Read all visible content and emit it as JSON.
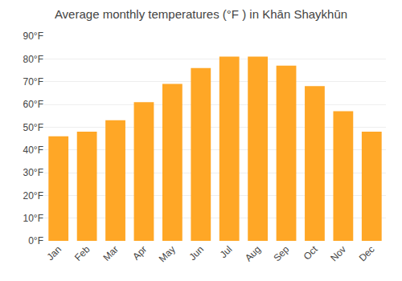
{
  "chart_data": {
    "type": "bar",
    "title": "Average monthly temperatures (°F ) in Khān Shaykhūn",
    "categories": [
      "Jan",
      "Feb",
      "Mar",
      "Apr",
      "May",
      "Jun",
      "Jul",
      "Aug",
      "Sep",
      "Oct",
      "Nov",
      "Dec"
    ],
    "values": [
      46,
      48,
      53,
      61,
      69,
      76,
      81,
      81,
      77,
      68,
      57,
      48
    ],
    "color": "#FFA726",
    "ylim": [
      0,
      90
    ],
    "yticks": [
      {
        "value": 0,
        "label": "0°F"
      },
      {
        "value": 10,
        "label": "10°F"
      },
      {
        "value": 20,
        "label": "20°F"
      },
      {
        "value": 30,
        "label": "30°F"
      },
      {
        "value": 40,
        "label": "40°F"
      },
      {
        "value": 50,
        "label": "50°F"
      },
      {
        "value": 60,
        "label": "60°F"
      },
      {
        "value": 70,
        "label": "70°F"
      },
      {
        "value": 80,
        "label": "80°F"
      },
      {
        "value": 90,
        "label": "90°F"
      }
    ],
    "grid": true
  }
}
